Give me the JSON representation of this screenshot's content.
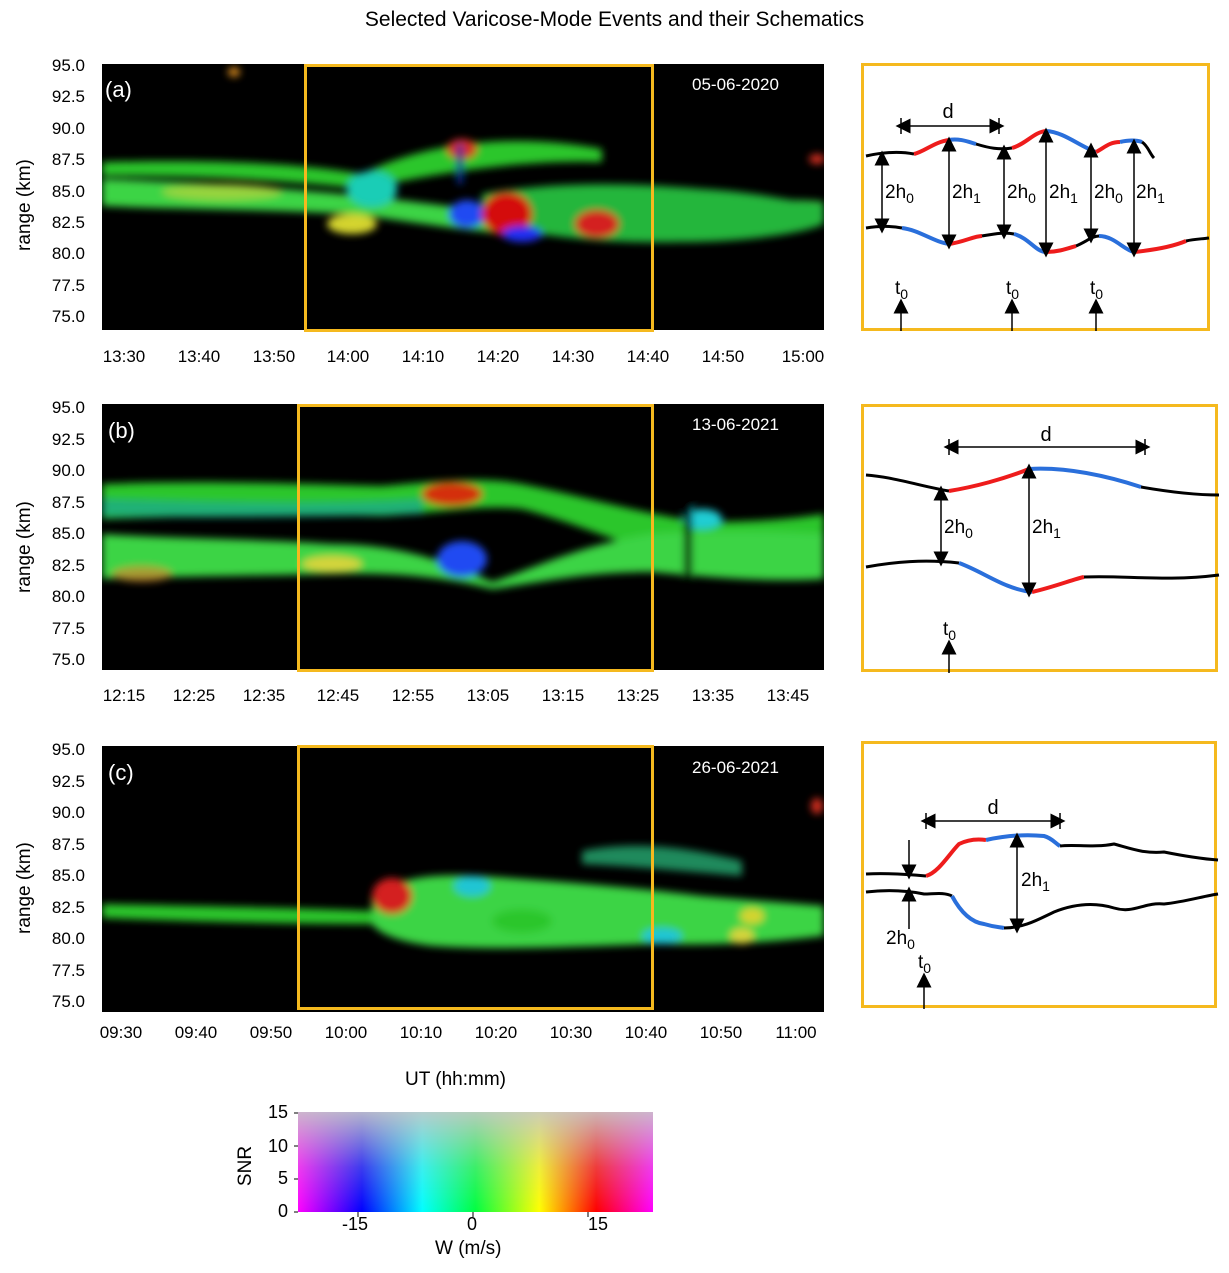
{
  "title": "Selected Varicose-Mode Events and their Schematics",
  "y_axis_label": "range (km)",
  "x_axis_label": "UT (hh:mm)",
  "y_ticks": [
    "95.0",
    "92.5",
    "90.0",
    "87.5",
    "85.0",
    "82.5",
    "80.0",
    "77.5",
    "75.0"
  ],
  "panels": [
    {
      "label": "(a)",
      "date": "05-06-2020",
      "x_ticks": [
        "13:30",
        "13:40",
        "13:50",
        "14:00",
        "14:10",
        "14:20",
        "14:30",
        "14:40",
        "14:50",
        "15:00"
      ],
      "highlight_window": [
        "13:54",
        "14:40"
      ]
    },
    {
      "label": "(b)",
      "date": "13-06-2021",
      "x_ticks": [
        "12:15",
        "12:25",
        "12:35",
        "12:45",
        "12:55",
        "13:05",
        "13:15",
        "13:25",
        "13:35",
        "13:45"
      ],
      "highlight_window": [
        "12:40",
        "13:27"
      ]
    },
    {
      "label": "(c)",
      "date": "26-06-2021",
      "x_ticks": [
        "09:30",
        "09:40",
        "09:50",
        "10:00",
        "10:10",
        "10:20",
        "10:30",
        "10:40",
        "10:50",
        "11:00"
      ],
      "highlight_window": [
        "09:54",
        "10:41"
      ]
    }
  ],
  "schematic_labels": {
    "d": "d",
    "h0_prefix": "2h",
    "h0_sub": "0",
    "h1_prefix": "2h",
    "h1_sub": "1",
    "t_prefix": "t",
    "t_sub": "0"
  },
  "colorbar": {
    "ylabel": "SNR",
    "xlabel": "W (m/s)",
    "y_ticks": [
      "15",
      "10",
      "5",
      "0"
    ],
    "x_ticks": [
      "-15",
      "0",
      "15"
    ]
  },
  "colors": {
    "highlight": "#f5b91e",
    "upward_red": "#ee1c1c",
    "downward_blue": "#2a6fdb",
    "layer_green": "#2fd12f"
  }
}
